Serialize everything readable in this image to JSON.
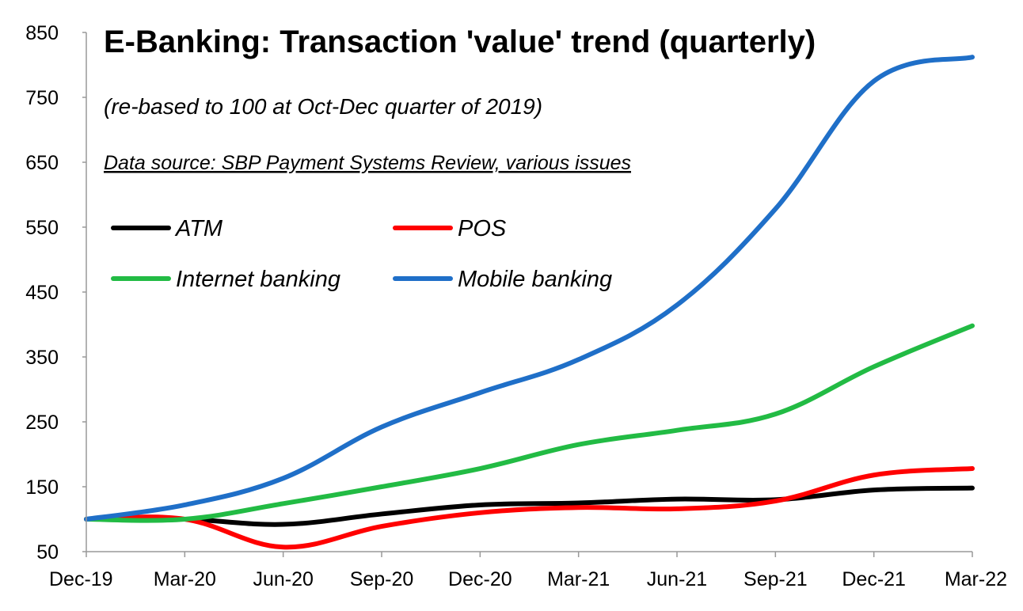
{
  "chart_data": {
    "type": "line",
    "title": "E-Banking: Transaction 'value' trend (quarterly)",
    "subtitle": "(re-based to 100 at Oct-Dec quarter of 2019)",
    "source": "Data source: SBP Payment Systems Review, various issues",
    "categories": [
      "Dec-19",
      "Mar-20",
      "Jun-20",
      "Sep-20",
      "Dec-20",
      "Mar-21",
      "Jun-21",
      "Sep-21",
      "Dec-21",
      "Mar-22"
    ],
    "ylim": [
      50,
      850
    ],
    "yticks": [
      50,
      150,
      250,
      350,
      450,
      550,
      650,
      750,
      850
    ],
    "grid": false,
    "legend_position": "top-left",
    "series": [
      {
        "name": "ATM",
        "color": "#000000",
        "values": [
          100,
          100,
          92,
          108,
          122,
          125,
          131,
          130,
          145,
          148
        ]
      },
      {
        "name": "POS",
        "color": "#ff0000",
        "values": [
          100,
          100,
          57,
          89,
          110,
          118,
          116,
          128,
          168,
          178
        ]
      },
      {
        "name": "Internet banking",
        "color": "#22bb44",
        "values": [
          100,
          100,
          124,
          150,
          178,
          215,
          237,
          262,
          335,
          398
        ]
      },
      {
        "name": "Mobile banking",
        "color": "#1f6fc8",
        "values": [
          100,
          122,
          163,
          242,
          295,
          346,
          430,
          578,
          775,
          812
        ]
      }
    ]
  }
}
